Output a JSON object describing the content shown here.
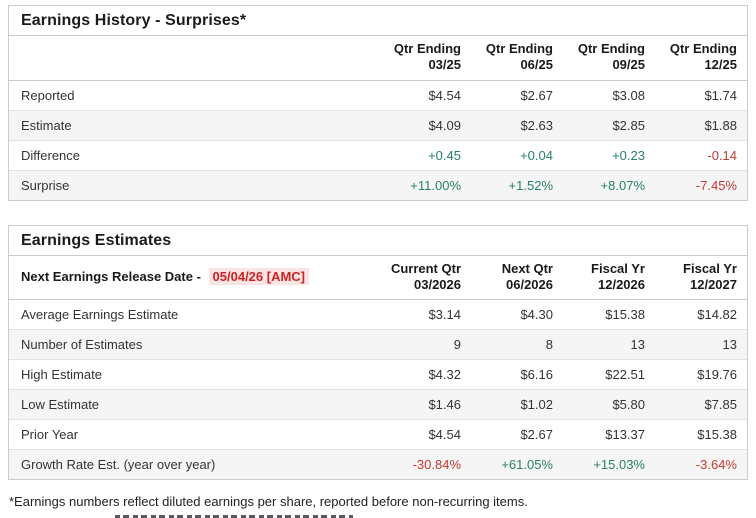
{
  "colors": {
    "positive_green": "#28835e",
    "negative_red": "#c23b33",
    "release_date_red": "#cc2222",
    "release_date_bg": "#fce4e4",
    "alt_row_bg": "#f5f5f5",
    "border": "#cccccc"
  },
  "earnings_history": {
    "title": "Earnings History - Surprises*",
    "columns": [
      {
        "line1": "Qtr Ending",
        "line2": "03/25"
      },
      {
        "line1": "Qtr Ending",
        "line2": "06/25"
      },
      {
        "line1": "Qtr Ending",
        "line2": "09/25"
      },
      {
        "line1": "Qtr Ending",
        "line2": "12/25"
      }
    ],
    "rows": [
      {
        "label": "Reported",
        "values": [
          "$4.54",
          "$2.67",
          "$3.08",
          "$1.74"
        ],
        "types": [
          "plain",
          "plain",
          "plain",
          "plain"
        ]
      },
      {
        "label": "Estimate",
        "values": [
          "$4.09",
          "$2.63",
          "$2.85",
          "$1.88"
        ],
        "types": [
          "plain",
          "plain",
          "plain",
          "plain"
        ]
      },
      {
        "label": "Difference",
        "values": [
          "+0.45",
          "+0.04",
          "+0.23",
          "-0.14"
        ],
        "types": [
          "pos",
          "pos",
          "pos",
          "neg"
        ]
      },
      {
        "label": "Surprise",
        "values": [
          "+11.00%",
          "+1.52%",
          "+8.07%",
          "-7.45%"
        ],
        "types": [
          "pos",
          "pos",
          "pos",
          "neg"
        ]
      }
    ]
  },
  "earnings_estimates": {
    "title": "Earnings Estimates",
    "release_label": "Next Earnings Release Date -",
    "release_date": "05/04/26 [AMC]",
    "columns": [
      {
        "line1": "Current Qtr",
        "line2": "03/2026"
      },
      {
        "line1": "Next Qtr",
        "line2": "06/2026"
      },
      {
        "line1": "Fiscal Yr",
        "line2": "12/2026"
      },
      {
        "line1": "Fiscal Yr",
        "line2": "12/2027"
      }
    ],
    "rows": [
      {
        "label": "Average Earnings Estimate",
        "values": [
          "$3.14",
          "$4.30",
          "$15.38",
          "$14.82"
        ],
        "types": [
          "plain",
          "plain",
          "plain",
          "plain"
        ]
      },
      {
        "label": "Number of Estimates",
        "values": [
          "9",
          "8",
          "13",
          "13"
        ],
        "types": [
          "plain",
          "plain",
          "plain",
          "plain"
        ]
      },
      {
        "label": "High Estimate",
        "values": [
          "$4.32",
          "$6.16",
          "$22.51",
          "$19.76"
        ],
        "types": [
          "plain",
          "plain",
          "plain",
          "plain"
        ]
      },
      {
        "label": "Low Estimate",
        "values": [
          "$1.46",
          "$1.02",
          "$5.80",
          "$7.85"
        ],
        "types": [
          "plain",
          "plain",
          "plain",
          "plain"
        ]
      },
      {
        "label": "Prior Year",
        "values": [
          "$4.54",
          "$2.67",
          "$13.37",
          "$15.38"
        ],
        "types": [
          "plain",
          "plain",
          "plain",
          "plain"
        ]
      },
      {
        "label": "Growth Rate Est. (year over year)",
        "values": [
          "-30.84%",
          "+61.05%",
          "+15.03%",
          "-3.64%"
        ],
        "types": [
          "neg",
          "pos",
          "pos",
          "neg"
        ]
      }
    ]
  },
  "footnote": "*Earnings numbers reflect diluted earnings per share, reported before non-recurring items."
}
